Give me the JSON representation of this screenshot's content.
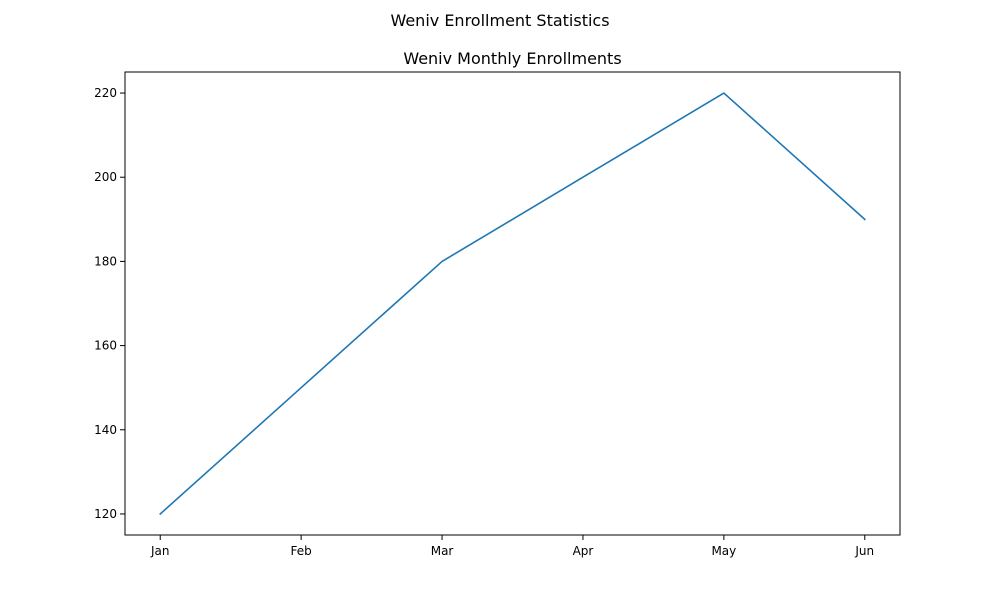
{
  "figure": {
    "suptitle": "Weniv Enrollment Statistics"
  },
  "chart_data": {
    "type": "line",
    "title": "Weniv Monthly Enrollments",
    "xlabel": "",
    "ylabel": "",
    "categories": [
      "Jan",
      "Feb",
      "Mar",
      "Apr",
      "May",
      "Jun"
    ],
    "series": [
      {
        "values": [
          120,
          150,
          180,
          200,
          220,
          190
        ],
        "color": "#1f77b4"
      }
    ],
    "ylim": [
      115,
      225
    ],
    "yticks": [
      120,
      140,
      160,
      180,
      200,
      220
    ],
    "grid": false,
    "legend": "none"
  }
}
